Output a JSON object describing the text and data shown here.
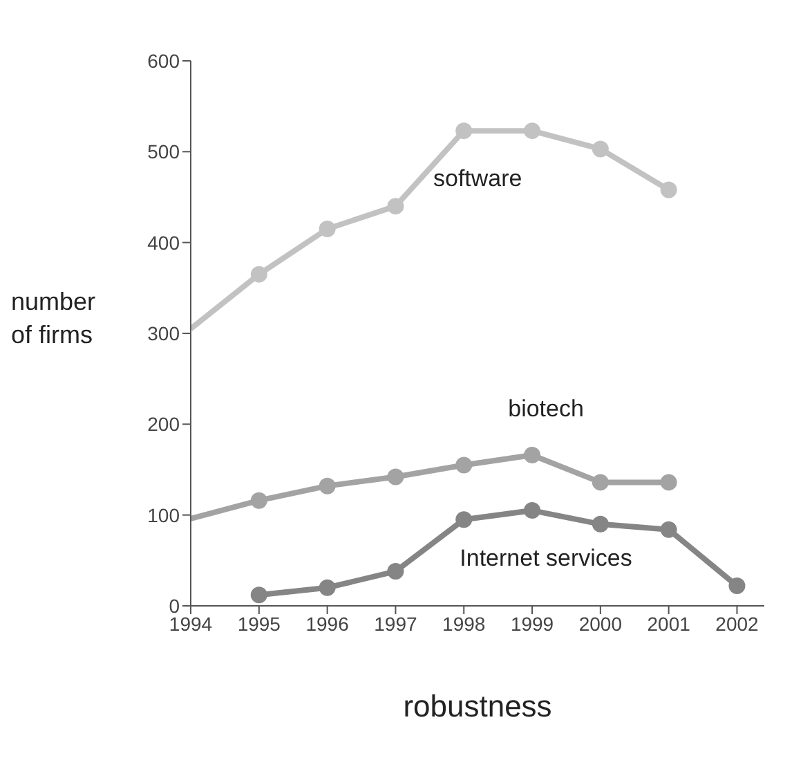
{
  "chart_data": {
    "type": "line",
    "xlabel": "robustness",
    "ylabel": "number\nof firms",
    "xlim": [
      1994,
      2002.4
    ],
    "xticks": [
      1994,
      1995,
      1996,
      1997,
      1998,
      1999,
      2000,
      2001,
      2002
    ],
    "ylim": [
      0,
      600
    ],
    "yticks": [
      0,
      100,
      200,
      300,
      400,
      500,
      600
    ],
    "grid": false,
    "legend": false,
    "marker": "circle",
    "line_style": "solid",
    "series": [
      {
        "name": "software",
        "color": "#c2c2c2",
        "x": [
          1994,
          1995,
          1996,
          1997,
          1998,
          1999,
          2000,
          2001
        ],
        "values": [
          305,
          365,
          415,
          440,
          523,
          523,
          503,
          458
        ]
      },
      {
        "name": "biotech",
        "color": "#a3a3a3",
        "x": [
          1994,
          1995,
          1996,
          1997,
          1998,
          1999,
          2000,
          2001
        ],
        "values": [
          96,
          116,
          132,
          142,
          155,
          166,
          136,
          136
        ]
      },
      {
        "name": "Internet services",
        "color": "#858585",
        "x": [
          1995,
          1996,
          1997,
          1998,
          1999,
          2000,
          2001,
          2002
        ],
        "values": [
          12,
          20,
          38,
          95,
          105,
          90,
          84,
          22
        ]
      }
    ]
  }
}
